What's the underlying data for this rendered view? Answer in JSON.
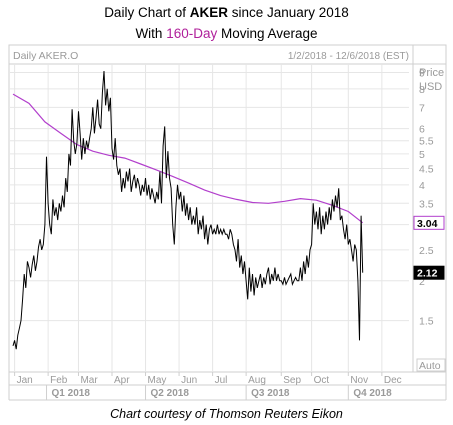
{
  "header": {
    "title_prefix": "Daily Chart of ",
    "ticker": "AKER",
    "title_suffix": " since January 2018",
    "subtitle_prefix": "With ",
    "subtitle_highlight": "160-Day",
    "subtitle_suffix": " Moving Average"
  },
  "panel": {
    "label": "Daily AKER.O",
    "date_range": "1/2/2018 - 12/6/2018 (EST)",
    "price_label": "Price",
    "currency_label": "USD",
    "auto_label": "Auto"
  },
  "caption": "Chart courtesy of Thomson Reuters Eikon",
  "colors": {
    "price_line": "#000000",
    "moving_average": "#b23fcc",
    "grid": "#e6e6e6",
    "axis_text": "#9a9a9a"
  },
  "chart_data": {
    "type": "line",
    "scale": "log",
    "ylim": [
      1.05,
      9.3
    ],
    "x_range": [
      0,
      248
    ],
    "y_ticks": [
      "1.5",
      "2",
      "2.5",
      "3",
      "3.5",
      "4",
      "4.5",
      "5",
      "5.5",
      "6",
      "7",
      "8",
      "9"
    ],
    "y_tick_values": [
      1.5,
      2,
      2.5,
      3,
      3.5,
      4,
      4.5,
      5,
      5.5,
      6,
      7,
      8,
      9
    ],
    "month_labels": [
      {
        "label": "Jan",
        "day": 1
      },
      {
        "label": "Feb",
        "day": 22
      },
      {
        "label": "Mar",
        "day": 41
      },
      {
        "label": "Apr",
        "day": 62
      },
      {
        "label": "May",
        "day": 83
      },
      {
        "label": "Jun",
        "day": 104
      },
      {
        "label": "Jul",
        "day": 125
      },
      {
        "label": "Aug",
        "day": 146
      },
      {
        "label": "Sep",
        "day": 168
      },
      {
        "label": "Oct",
        "day": 187
      },
      {
        "label": "Nov",
        "day": 210
      },
      {
        "label": "Dec",
        "day": 231
      }
    ],
    "quarter_labels": [
      {
        "label": "Q1 2018",
        "day": 21
      },
      {
        "label": "Q2 2018",
        "day": 83
      },
      {
        "label": "Q3 2018",
        "day": 146
      },
      {
        "label": "Q4 2018",
        "day": 210
      }
    ],
    "last_values": [
      {
        "label": "3.04",
        "value": 3.04,
        "style": "ma"
      },
      {
        "label": "2.12",
        "value": 2.12,
        "style": "price"
      }
    ],
    "series": [
      {
        "name": "Daily AKER.O",
        "points": [
          [
            0,
            1.25
          ],
          [
            1,
            1.3
          ],
          [
            2,
            1.22
          ],
          [
            3,
            1.35
          ],
          [
            4,
            1.42
          ],
          [
            5,
            1.5
          ],
          [
            6,
            1.75
          ],
          [
            7,
            2.1
          ],
          [
            8,
            1.9
          ],
          [
            9,
            2.3
          ],
          [
            10,
            2.2
          ],
          [
            11,
            2.05
          ],
          [
            12,
            2.25
          ],
          [
            13,
            2.4
          ],
          [
            14,
            2.15
          ],
          [
            15,
            2.3
          ],
          [
            16,
            2.55
          ],
          [
            17,
            2.7
          ],
          [
            18,
            2.5
          ],
          [
            19,
            2.6
          ],
          [
            20,
            3.0
          ],
          [
            21,
            4.9
          ],
          [
            22,
            3.5
          ],
          [
            23,
            3.0
          ],
          [
            24,
            2.8
          ],
          [
            25,
            3.6
          ],
          [
            26,
            3.2
          ],
          [
            27,
            3.4
          ],
          [
            28,
            3.1
          ],
          [
            29,
            3.5
          ],
          [
            30,
            3.3
          ],
          [
            31,
            3.7
          ],
          [
            32,
            3.4
          ],
          [
            33,
            4.2
          ],
          [
            34,
            3.8
          ],
          [
            35,
            5.0
          ],
          [
            36,
            4.6
          ],
          [
            37,
            6.9
          ],
          [
            38,
            5.5
          ],
          [
            39,
            5.0
          ],
          [
            40,
            5.4
          ],
          [
            41,
            6.8
          ],
          [
            42,
            5.8
          ],
          [
            43,
            4.8
          ],
          [
            44,
            5.6
          ],
          [
            45,
            5.0
          ],
          [
            46,
            5.5
          ],
          [
            47,
            5.2
          ],
          [
            48,
            5.6
          ],
          [
            49,
            6.0
          ],
          [
            50,
            7.0
          ],
          [
            51,
            5.8
          ],
          [
            52,
            6.5
          ],
          [
            53,
            7.4
          ],
          [
            54,
            6.2
          ],
          [
            55,
            6.0
          ],
          [
            56,
            7.8
          ],
          [
            57,
            9.1
          ],
          [
            58,
            7.1
          ],
          [
            59,
            8.0
          ],
          [
            60,
            6.8
          ],
          [
            61,
            7.5
          ],
          [
            62,
            5.2
          ],
          [
            63,
            4.8
          ],
          [
            64,
            5.6
          ],
          [
            65,
            4.6
          ],
          [
            66,
            4.3
          ],
          [
            67,
            4.5
          ],
          [
            68,
            3.8
          ],
          [
            69,
            4.2
          ],
          [
            70,
            3.9
          ],
          [
            71,
            4.4
          ],
          [
            72,
            4.1
          ],
          [
            73,
            4.5
          ],
          [
            74,
            3.8
          ],
          [
            75,
            4.1
          ],
          [
            76,
            4.3
          ],
          [
            77,
            3.9
          ],
          [
            78,
            4.2
          ],
          [
            79,
            4.0
          ],
          [
            80,
            3.7
          ],
          [
            81,
            4.0
          ],
          [
            82,
            3.8
          ],
          [
            83,
            4.2
          ],
          [
            84,
            3.7
          ],
          [
            85,
            4.0
          ],
          [
            86,
            3.6
          ],
          [
            87,
            3.9
          ],
          [
            88,
            3.7
          ],
          [
            89,
            3.5
          ],
          [
            90,
            3.8
          ],
          [
            91,
            3.6
          ],
          [
            92,
            4.4
          ],
          [
            93,
            3.5
          ],
          [
            94,
            5.3
          ],
          [
            95,
            6.1
          ],
          [
            96,
            4.2
          ],
          [
            97,
            5.1
          ],
          [
            98,
            4.2
          ],
          [
            99,
            3.9
          ],
          [
            100,
            3.0
          ],
          [
            101,
            2.6
          ],
          [
            102,
            3.4
          ],
          [
            103,
            4.0
          ],
          [
            104,
            3.6
          ],
          [
            105,
            3.8
          ],
          [
            106,
            3.3
          ],
          [
            107,
            3.7
          ],
          [
            108,
            3.2
          ],
          [
            109,
            3.5
          ],
          [
            110,
            3.1
          ],
          [
            111,
            3.4
          ],
          [
            112,
            3.0
          ],
          [
            113,
            3.2
          ],
          [
            114,
            3.0
          ],
          [
            115,
            3.4
          ],
          [
            116,
            2.8
          ],
          [
            117,
            3.1
          ],
          [
            118,
            2.9
          ],
          [
            119,
            3.2
          ],
          [
            120,
            2.7
          ],
          [
            121,
            3.0
          ],
          [
            122,
            2.6
          ],
          [
            123,
            2.9
          ],
          [
            124,
            3.0
          ],
          [
            125,
            2.8
          ],
          [
            126,
            2.9
          ],
          [
            127,
            2.8
          ],
          [
            128,
            3.0
          ],
          [
            129,
            2.8
          ],
          [
            130,
            2.9
          ],
          [
            131,
            2.8
          ],
          [
            132,
            2.9
          ],
          [
            133,
            2.8
          ],
          [
            134,
            2.8
          ],
          [
            135,
            2.7
          ],
          [
            136,
            2.9
          ],
          [
            137,
            2.8
          ],
          [
            138,
            2.6
          ],
          [
            139,
            2.5
          ],
          [
            140,
            2.3
          ],
          [
            141,
            2.7
          ],
          [
            142,
            2.2
          ],
          [
            143,
            2.4
          ],
          [
            144,
            2.1
          ],
          [
            145,
            2.3
          ],
          [
            146,
            2.0
          ],
          [
            147,
            1.75
          ],
          [
            148,
            2.2
          ],
          [
            149,
            1.85
          ],
          [
            150,
            2.1
          ],
          [
            151,
            1.8
          ],
          [
            152,
            2.05
          ],
          [
            153,
            1.9
          ],
          [
            154,
            2.0
          ],
          [
            155,
            2.1
          ],
          [
            156,
            1.9
          ],
          [
            157,
            2.05
          ],
          [
            158,
            1.95
          ],
          [
            159,
            2.1
          ],
          [
            160,
            2.2
          ],
          [
            161,
            1.95
          ],
          [
            162,
            2.1
          ],
          [
            163,
            2.0
          ],
          [
            164,
            2.2
          ],
          [
            165,
            2.0
          ],
          [
            166,
            2.1
          ],
          [
            167,
            2.0
          ],
          [
            168,
            2.0
          ],
          [
            169,
            1.95
          ],
          [
            170,
            2.05
          ],
          [
            171,
            1.95
          ],
          [
            172,
            2.0
          ],
          [
            173,
            2.05
          ],
          [
            174,
            2.1
          ],
          [
            175,
            1.95
          ],
          [
            176,
            2.0
          ],
          [
            177,
            2.05
          ],
          [
            178,
            2.0
          ],
          [
            179,
            2.0
          ],
          [
            180,
            2.2
          ],
          [
            181,
            2.0
          ],
          [
            182,
            2.3
          ],
          [
            183,
            2.1
          ],
          [
            184,
            2.4
          ],
          [
            185,
            2.2
          ],
          [
            186,
            2.5
          ],
          [
            187,
            2.6
          ],
          [
            188,
            3.5
          ],
          [
            189,
            3.0
          ],
          [
            190,
            3.3
          ],
          [
            191,
            2.9
          ],
          [
            192,
            3.4
          ],
          [
            193,
            2.8
          ],
          [
            194,
            3.2
          ],
          [
            195,
            2.9
          ],
          [
            196,
            3.3
          ],
          [
            197,
            3.0
          ],
          [
            198,
            3.4
          ],
          [
            199,
            3.1
          ],
          [
            200,
            3.6
          ],
          [
            201,
            3.3
          ],
          [
            202,
            3.7
          ],
          [
            203,
            3.4
          ],
          [
            204,
            3.9
          ],
          [
            205,
            3.1
          ],
          [
            206,
            3.2
          ],
          [
            207,
            2.9
          ],
          [
            208,
            2.7
          ],
          [
            209,
            3.0
          ],
          [
            210,
            2.6
          ],
          [
            211,
            2.7
          ],
          [
            212,
            2.5
          ],
          [
            213,
            2.3
          ],
          [
            214,
            2.6
          ],
          [
            215,
            2.5
          ],
          [
            216,
            2.0
          ],
          [
            217,
            1.3
          ],
          [
            218,
            3.2
          ],
          [
            219,
            2.12
          ]
        ]
      },
      {
        "name": "160-Day Moving Average",
        "points": [
          [
            0,
            7.7
          ],
          [
            10,
            7.2
          ],
          [
            20,
            6.3
          ],
          [
            30,
            5.8
          ],
          [
            40,
            5.35
          ],
          [
            50,
            5.1
          ],
          [
            60,
            4.95
          ],
          [
            70,
            4.85
          ],
          [
            80,
            4.65
          ],
          [
            90,
            4.45
          ],
          [
            100,
            4.25
          ],
          [
            110,
            4.05
          ],
          [
            120,
            3.85
          ],
          [
            130,
            3.7
          ],
          [
            140,
            3.6
          ],
          [
            150,
            3.52
          ],
          [
            160,
            3.5
          ],
          [
            170,
            3.55
          ],
          [
            180,
            3.62
          ],
          [
            190,
            3.58
          ],
          [
            200,
            3.45
          ],
          [
            210,
            3.3
          ],
          [
            219,
            3.04
          ]
        ]
      }
    ]
  }
}
